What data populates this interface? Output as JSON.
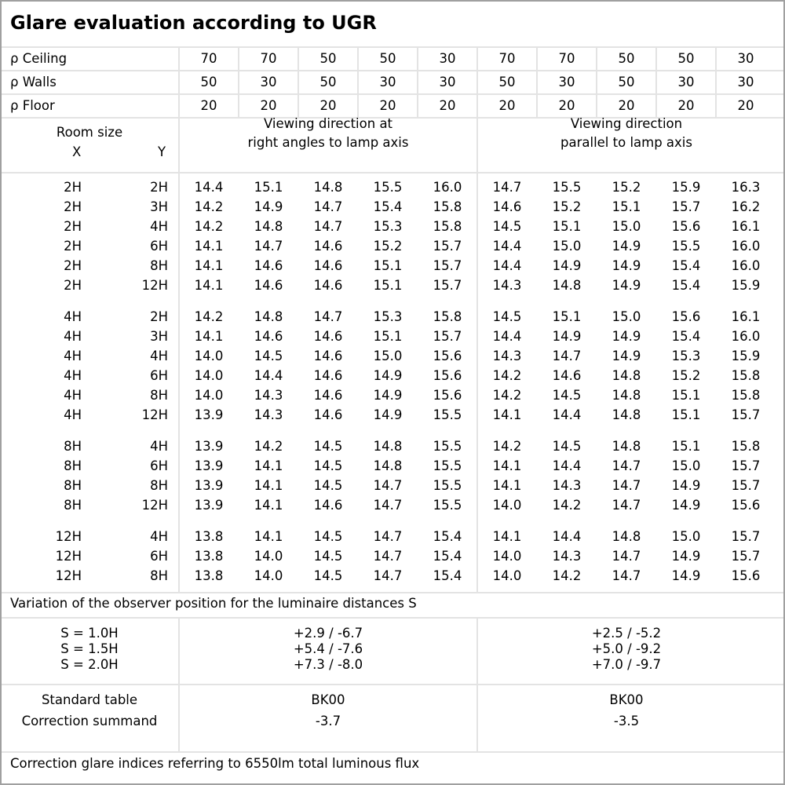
{
  "title": "Glare evaluation according to UGR",
  "reflectance": [
    {
      "label": "ρ Ceiling",
      "values": [
        "70",
        "70",
        "50",
        "50",
        "30",
        "70",
        "70",
        "50",
        "50",
        "30"
      ]
    },
    {
      "label": "ρ Walls",
      "values": [
        "50",
        "30",
        "50",
        "30",
        "30",
        "50",
        "30",
        "50",
        "30",
        "30"
      ]
    },
    {
      "label": "ρ Floor",
      "values": [
        "20",
        "20",
        "20",
        "20",
        "20",
        "20",
        "20",
        "20",
        "20",
        "20"
      ]
    }
  ],
  "header": {
    "room_size": "Room size",
    "x": "X",
    "y": "Y",
    "dir_right_angles": "Viewing direction at\nright angles to lamp axis",
    "dir_parallel": "Viewing direction\nparallel to lamp axis"
  },
  "groups": [
    {
      "rows": [
        {
          "x": "2H",
          "y": "2H",
          "values": [
            "14.4",
            "15.1",
            "14.8",
            "15.5",
            "16.0",
            "14.7",
            "15.5",
            "15.2",
            "15.9",
            "16.3"
          ]
        },
        {
          "x": "2H",
          "y": "3H",
          "values": [
            "14.2",
            "14.9",
            "14.7",
            "15.4",
            "15.8",
            "14.6",
            "15.2",
            "15.1",
            "15.7",
            "16.2"
          ]
        },
        {
          "x": "2H",
          "y": "4H",
          "values": [
            "14.2",
            "14.8",
            "14.7",
            "15.3",
            "15.8",
            "14.5",
            "15.1",
            "15.0",
            "15.6",
            "16.1"
          ]
        },
        {
          "x": "2H",
          "y": "6H",
          "values": [
            "14.1",
            "14.7",
            "14.6",
            "15.2",
            "15.7",
            "14.4",
            "15.0",
            "14.9",
            "15.5",
            "16.0"
          ]
        },
        {
          "x": "2H",
          "y": "8H",
          "values": [
            "14.1",
            "14.6",
            "14.6",
            "15.1",
            "15.7",
            "14.4",
            "14.9",
            "14.9",
            "15.4",
            "16.0"
          ]
        },
        {
          "x": "2H",
          "y": "12H",
          "values": [
            "14.1",
            "14.6",
            "14.6",
            "15.1",
            "15.7",
            "14.3",
            "14.8",
            "14.9",
            "15.4",
            "15.9"
          ]
        }
      ]
    },
    {
      "rows": [
        {
          "x": "4H",
          "y": "2H",
          "values": [
            "14.2",
            "14.8",
            "14.7",
            "15.3",
            "15.8",
            "14.5",
            "15.1",
            "15.0",
            "15.6",
            "16.1"
          ]
        },
        {
          "x": "4H",
          "y": "3H",
          "values": [
            "14.1",
            "14.6",
            "14.6",
            "15.1",
            "15.7",
            "14.4",
            "14.9",
            "14.9",
            "15.4",
            "16.0"
          ]
        },
        {
          "x": "4H",
          "y": "4H",
          "values": [
            "14.0",
            "14.5",
            "14.6",
            "15.0",
            "15.6",
            "14.3",
            "14.7",
            "14.9",
            "15.3",
            "15.9"
          ]
        },
        {
          "x": "4H",
          "y": "6H",
          "values": [
            "14.0",
            "14.4",
            "14.6",
            "14.9",
            "15.6",
            "14.2",
            "14.6",
            "14.8",
            "15.2",
            "15.8"
          ]
        },
        {
          "x": "4H",
          "y": "8H",
          "values": [
            "14.0",
            "14.3",
            "14.6",
            "14.9",
            "15.6",
            "14.2",
            "14.5",
            "14.8",
            "15.1",
            "15.8"
          ]
        },
        {
          "x": "4H",
          "y": "12H",
          "values": [
            "13.9",
            "14.3",
            "14.6",
            "14.9",
            "15.5",
            "14.1",
            "14.4",
            "14.8",
            "15.1",
            "15.7"
          ]
        }
      ]
    },
    {
      "rows": [
        {
          "x": "8H",
          "y": "4H",
          "values": [
            "13.9",
            "14.2",
            "14.5",
            "14.8",
            "15.5",
            "14.2",
            "14.5",
            "14.8",
            "15.1",
            "15.8"
          ]
        },
        {
          "x": "8H",
          "y": "6H",
          "values": [
            "13.9",
            "14.1",
            "14.5",
            "14.8",
            "15.5",
            "14.1",
            "14.4",
            "14.7",
            "15.0",
            "15.7"
          ]
        },
        {
          "x": "8H",
          "y": "8H",
          "values": [
            "13.9",
            "14.1",
            "14.5",
            "14.7",
            "15.5",
            "14.1",
            "14.3",
            "14.7",
            "14.9",
            "15.7"
          ]
        },
        {
          "x": "8H",
          "y": "12H",
          "values": [
            "13.9",
            "14.1",
            "14.6",
            "14.7",
            "15.5",
            "14.0",
            "14.2",
            "14.7",
            "14.9",
            "15.6"
          ]
        }
      ]
    },
    {
      "rows": [
        {
          "x": "12H",
          "y": "4H",
          "values": [
            "13.8",
            "14.1",
            "14.5",
            "14.7",
            "15.4",
            "14.1",
            "14.4",
            "14.8",
            "15.0",
            "15.7"
          ]
        },
        {
          "x": "12H",
          "y": "6H",
          "values": [
            "13.8",
            "14.0",
            "14.5",
            "14.7",
            "15.4",
            "14.0",
            "14.3",
            "14.7",
            "14.9",
            "15.7"
          ]
        },
        {
          "x": "12H",
          "y": "8H",
          "values": [
            "13.8",
            "14.0",
            "14.5",
            "14.7",
            "15.4",
            "14.0",
            "14.2",
            "14.7",
            "14.9",
            "15.6"
          ]
        }
      ]
    }
  ],
  "variation": {
    "label": "Variation of the observer position for the luminaire distances S",
    "rows": [
      {
        "label": "S = 1.0H",
        "right_angles": "+2.9 / -6.7",
        "parallel": "+2.5 / -5.2"
      },
      {
        "label": "S = 1.5H",
        "right_angles": "+5.4 / -7.6",
        "parallel": "+5.0 / -9.2"
      },
      {
        "label": "S = 2.0H",
        "right_angles": "+7.3 / -8.0",
        "parallel": "+7.0 / -9.7"
      }
    ]
  },
  "standard": {
    "table_label": "Standard table",
    "summand_label": "Correction summand",
    "right_angles_table": "BK00",
    "right_angles_summand": "-3.7",
    "parallel_table": "BK00",
    "parallel_summand": "-3.5"
  },
  "footer": "Correction glare indices referring to 6550lm total luminous flux"
}
